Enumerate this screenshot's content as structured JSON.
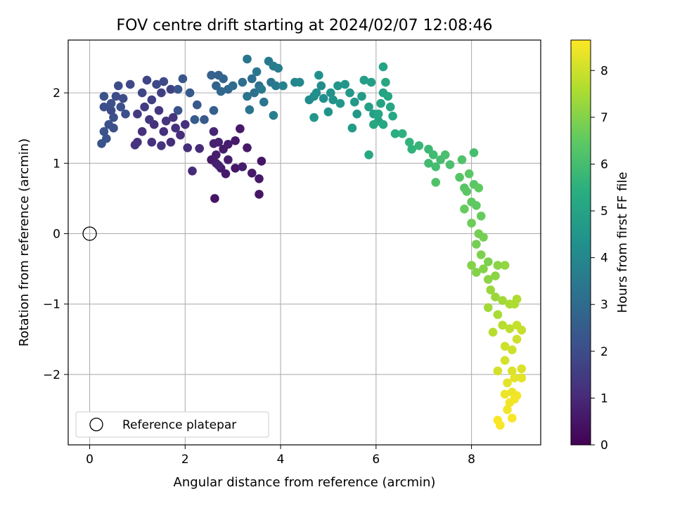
{
  "chart_data": {
    "type": "scatter",
    "title": "FOV centre drift starting at 2024/02/07 12:08:46",
    "xlabel": "Angular distance from reference (arcmin)",
    "ylabel": "Rotation from reference (arcmin)",
    "xlim": [
      -0.45,
      9.45
    ],
    "ylim": [
      -3.0,
      2.75
    ],
    "xticks": [
      0,
      2,
      4,
      6,
      8
    ],
    "yticks": [
      -2,
      -1,
      0,
      1,
      2
    ],
    "grid": true,
    "colormap": "viridis",
    "colorbar": {
      "label": "Hours from first FF file",
      "range": [
        0,
        8.65
      ],
      "ticks": [
        0,
        1,
        2,
        3,
        4,
        5,
        6,
        7,
        8
      ]
    },
    "legend": {
      "position": "lower-left",
      "entries": [
        "Reference platepar"
      ]
    },
    "reference_point": {
      "x": 0,
      "y": 0,
      "label": "Reference platepar"
    },
    "points_xyc": [
      [
        2.62,
        0.5,
        0.5
      ],
      [
        3.55,
        0.56,
        0.5
      ],
      [
        3.55,
        0.78,
        0.6
      ],
      [
        3.4,
        0.86,
        0.6
      ],
      [
        2.85,
        0.85,
        0.6
      ],
      [
        3.05,
        0.93,
        0.5
      ],
      [
        2.75,
        0.93,
        0.6
      ],
      [
        2.55,
        1.05,
        0.6
      ],
      [
        2.65,
        1.12,
        0.7
      ],
      [
        2.8,
        1.2,
        0.7
      ],
      [
        2.9,
        1.27,
        0.7
      ],
      [
        3.05,
        1.32,
        0.6
      ],
      [
        3.3,
        1.22,
        0.6
      ],
      [
        3.15,
        1.49,
        0.6
      ],
      [
        3.6,
        1.03,
        0.5
      ],
      [
        2.7,
        1.3,
        0.8
      ],
      [
        2.6,
        1.45,
        0.9
      ],
      [
        2.65,
        1.0,
        0.7
      ],
      [
        2.15,
        0.89,
        1.0
      ],
      [
        2.3,
        1.21,
        1.0
      ],
      [
        2.7,
        0.97,
        0.8
      ],
      [
        3.2,
        0.95,
        0.7
      ],
      [
        2.9,
        1.05,
        0.7
      ],
      [
        2.6,
        1.28,
        0.8
      ],
      [
        1.0,
        1.3,
        1.2
      ],
      [
        0.95,
        1.26,
        1.3
      ],
      [
        1.1,
        1.45,
        1.2
      ],
      [
        1.3,
        1.3,
        1.2
      ],
      [
        1.5,
        1.25,
        1.3
      ],
      [
        1.7,
        1.3,
        1.1
      ],
      [
        1.9,
        1.4,
        1.1
      ],
      [
        2.05,
        1.22,
        1.1
      ],
      [
        1.55,
        1.45,
        1.2
      ],
      [
        1.35,
        1.55,
        1.2
      ],
      [
        1.8,
        1.5,
        1.2
      ],
      [
        2.0,
        1.55,
        1.2
      ],
      [
        1.25,
        1.62,
        1.4
      ],
      [
        1.6,
        1.6,
        1.3
      ],
      [
        1.75,
        1.65,
        1.3
      ],
      [
        1.45,
        1.75,
        1.4
      ],
      [
        1.15,
        1.8,
        1.5
      ],
      [
        1.0,
        1.7,
        1.5
      ],
      [
        1.3,
        1.9,
        1.6
      ],
      [
        1.5,
        2.0,
        1.6
      ],
      [
        1.7,
        2.05,
        1.7
      ],
      [
        1.1,
        2.0,
        1.8
      ],
      [
        1.2,
        2.18,
        1.8
      ],
      [
        1.4,
        2.12,
        1.9
      ],
      [
        1.55,
        2.16,
        1.9
      ],
      [
        0.85,
        2.12,
        1.9
      ],
      [
        0.6,
        2.1,
        2.0
      ],
      [
        0.55,
        1.95,
        2.0
      ],
      [
        0.7,
        1.92,
        2.0
      ],
      [
        0.45,
        1.75,
        2.0
      ],
      [
        0.3,
        1.8,
        2.1
      ],
      [
        0.5,
        1.65,
        2.1
      ],
      [
        0.75,
        1.7,
        2.1
      ],
      [
        0.4,
        1.55,
        2.1
      ],
      [
        0.5,
        1.5,
        2.1
      ],
      [
        0.3,
        1.45,
        2.2
      ],
      [
        0.35,
        1.35,
        2.2
      ],
      [
        0.25,
        1.28,
        2.2
      ],
      [
        0.3,
        1.95,
        2.2
      ],
      [
        0.45,
        1.85,
        2.1
      ],
      [
        0.65,
        1.8,
        2.1
      ],
      [
        1.85,
        1.75,
        2.2
      ],
      [
        1.85,
        2.05,
        2.3
      ],
      [
        1.95,
        2.2,
        2.3
      ],
      [
        2.1,
        2.0,
        2.4
      ],
      [
        2.25,
        1.83,
        2.4
      ],
      [
        2.4,
        1.62,
        2.4
      ],
      [
        2.2,
        1.62,
        2.5
      ],
      [
        2.6,
        1.75,
        2.6
      ],
      [
        2.55,
        2.25,
        2.7
      ],
      [
        2.7,
        2.25,
        2.7
      ],
      [
        2.8,
        2.2,
        2.8
      ],
      [
        2.65,
        2.1,
        2.8
      ],
      [
        2.75,
        2.02,
        2.9
      ],
      [
        2.9,
        2.05,
        2.9
      ],
      [
        3.0,
        2.1,
        3.0
      ],
      [
        3.2,
        2.15,
        3.1
      ],
      [
        3.4,
        2.2,
        3.1
      ],
      [
        3.55,
        2.1,
        3.2
      ],
      [
        3.45,
        2.0,
        3.2
      ],
      [
        3.3,
        1.95,
        3.3
      ],
      [
        3.35,
        1.76,
        3.3
      ],
      [
        3.65,
        1.87,
        3.4
      ],
      [
        3.8,
        2.15,
        3.4
      ],
      [
        3.9,
        2.1,
        3.5
      ],
      [
        3.75,
        2.45,
        3.5
      ],
      [
        3.85,
        2.38,
        3.6
      ],
      [
        3.95,
        2.35,
        3.6
      ],
      [
        3.6,
        2.05,
        3.5
      ],
      [
        3.3,
        2.48,
        3.4
      ],
      [
        3.5,
        2.3,
        3.4
      ],
      [
        3.85,
        1.68,
        3.7
      ],
      [
        4.05,
        2.1,
        3.8
      ],
      [
        4.3,
        2.15,
        3.9
      ],
      [
        4.4,
        2.15,
        4.0
      ],
      [
        4.6,
        1.9,
        4.1
      ],
      [
        4.7,
        1.95,
        4.2
      ],
      [
        4.85,
        2.1,
        4.2
      ],
      [
        4.8,
        2.25,
        4.3
      ],
      [
        4.75,
        2.0,
        4.3
      ],
      [
        4.9,
        1.92,
        4.3
      ],
      [
        5.05,
        2.0,
        4.4
      ],
      [
        5.1,
        1.9,
        4.4
      ],
      [
        5.0,
        1.73,
        4.4
      ],
      [
        5.25,
        1.85,
        4.5
      ],
      [
        5.2,
        2.1,
        4.5
      ],
      [
        5.35,
        2.12,
        4.5
      ],
      [
        5.45,
        2.0,
        4.6
      ],
      [
        5.55,
        1.87,
        4.6
      ],
      [
        5.6,
        1.7,
        4.6
      ],
      [
        5.5,
        1.5,
        4.7
      ],
      [
        5.7,
        1.95,
        4.7
      ],
      [
        5.75,
        2.18,
        4.8
      ],
      [
        5.9,
        2.15,
        4.8
      ],
      [
        5.85,
        1.8,
        4.9
      ],
      [
        5.95,
        1.7,
        4.9
      ],
      [
        6.05,
        1.6,
        5.0
      ],
      [
        6.1,
        1.85,
        5.0
      ],
      [
        6.15,
        2.0,
        5.0
      ],
      [
        6.2,
        2.15,
        5.1
      ],
      [
        6.15,
        2.37,
        5.0
      ],
      [
        6.25,
        1.95,
        5.1
      ],
      [
        6.3,
        1.8,
        5.1
      ],
      [
        6.35,
        1.67,
        5.2
      ],
      [
        6.05,
        1.7,
        5.1
      ],
      [
        5.95,
        1.55,
        5.2
      ],
      [
        6.15,
        1.55,
        5.2
      ],
      [
        5.85,
        1.12,
        5.2
      ],
      [
        4.7,
        1.65,
        4.5
      ],
      [
        6.4,
        1.42,
        5.4
      ],
      [
        6.55,
        1.42,
        5.5
      ],
      [
        6.7,
        1.3,
        5.6
      ],
      [
        6.75,
        1.2,
        5.6
      ],
      [
        6.9,
        1.25,
        5.7
      ],
      [
        7.1,
        1.2,
        5.8
      ],
      [
        7.2,
        1.12,
        5.9
      ],
      [
        7.1,
        1.0,
        5.9
      ],
      [
        7.25,
        0.95,
        6.0
      ],
      [
        7.35,
        1.05,
        6.0
      ],
      [
        7.45,
        1.12,
        6.1
      ],
      [
        7.55,
        0.98,
        6.1
      ],
      [
        7.25,
        0.73,
        6.2
      ],
      [
        7.8,
        1.05,
        6.2
      ],
      [
        7.75,
        0.8,
        6.3
      ],
      [
        7.85,
        0.65,
        6.3
      ],
      [
        7.9,
        0.6,
        6.4
      ],
      [
        7.95,
        0.85,
        6.4
      ],
      [
        8.05,
        0.7,
        6.4
      ],
      [
        8.15,
        0.65,
        6.5
      ],
      [
        8.0,
        0.45,
        6.5
      ],
      [
        8.1,
        0.4,
        6.5
      ],
      [
        8.2,
        0.25,
        6.6
      ],
      [
        7.85,
        0.35,
        6.6
      ],
      [
        8.05,
        1.15,
        6.0
      ],
      [
        8.0,
        0.15,
        6.7
      ],
      [
        8.15,
        0.0,
        6.8
      ],
      [
        8.25,
        -0.05,
        6.8
      ],
      [
        8.1,
        -0.15,
        6.8
      ],
      [
        8.2,
        -0.3,
        6.9
      ],
      [
        8.35,
        -0.4,
        6.9
      ],
      [
        8.1,
        -0.55,
        7.0
      ],
      [
        8.25,
        -0.5,
        7.0
      ],
      [
        8.0,
        -0.45,
        7.0
      ],
      [
        8.35,
        -0.65,
        7.1
      ],
      [
        8.5,
        -0.6,
        7.1
      ],
      [
        8.55,
        -0.45,
        7.1
      ],
      [
        8.7,
        -0.45,
        7.2
      ],
      [
        8.4,
        -0.8,
        7.3
      ],
      [
        8.5,
        -0.9,
        7.3
      ],
      [
        8.65,
        -0.95,
        7.4
      ],
      [
        8.35,
        -1.05,
        7.4
      ],
      [
        8.55,
        -1.15,
        7.5
      ],
      [
        8.8,
        -1.0,
        7.5
      ],
      [
        8.9,
        -1.0,
        7.6
      ],
      [
        8.95,
        -0.93,
        7.6
      ],
      [
        8.65,
        -1.3,
        7.7
      ],
      [
        8.45,
        -1.4,
        7.7
      ],
      [
        8.8,
        -1.35,
        7.8
      ],
      [
        8.95,
        -1.3,
        7.9
      ],
      [
        9.05,
        -1.37,
        7.9
      ],
      [
        8.7,
        -1.6,
        8.0
      ],
      [
        8.85,
        -1.65,
        8.0
      ],
      [
        8.95,
        -1.5,
        8.0
      ],
      [
        8.55,
        -1.95,
        8.1
      ],
      [
        8.7,
        -1.8,
        8.1
      ],
      [
        8.85,
        -1.95,
        8.2
      ],
      [
        9.05,
        -1.92,
        8.2
      ],
      [
        8.9,
        -2.05,
        8.3
      ],
      [
        8.75,
        -2.12,
        8.3
      ],
      [
        9.05,
        -2.05,
        8.3
      ],
      [
        8.85,
        -2.25,
        8.4
      ],
      [
        8.7,
        -2.28,
        8.4
      ],
      [
        8.8,
        -2.4,
        8.5
      ],
      [
        8.9,
        -2.35,
        8.5
      ],
      [
        8.75,
        -2.5,
        8.5
      ],
      [
        8.55,
        -2.65,
        8.6
      ],
      [
        8.6,
        -2.72,
        8.6
      ],
      [
        8.85,
        -2.62,
        8.6
      ],
      [
        8.95,
        -2.3,
        8.5
      ]
    ]
  }
}
